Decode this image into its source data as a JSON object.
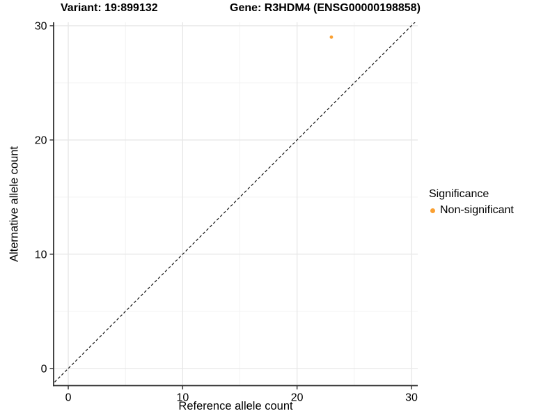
{
  "titles": {
    "left": "Variant: 19:899132",
    "right": "Gene: R3HDM4 (ENSG00000198858)"
  },
  "axes": {
    "x": {
      "label": "Reference allele count"
    },
    "y": {
      "label": "Alternative allele count"
    }
  },
  "legend": {
    "title": "Significance",
    "items": [
      {
        "label": "Non-significant",
        "color": "#FAA032",
        "shape": "circle"
      }
    ]
  },
  "chart_data": {
    "type": "scatter",
    "title": "Variant: 19:899132 | Gene: R3HDM4 (ENSG00000198858)",
    "xlabel": "Reference allele count",
    "ylabel": "Alternative allele count",
    "points": [
      {
        "x": 23,
        "y": 29,
        "series": "Non-significant",
        "color": "#FAA032"
      }
    ],
    "reference_line": {
      "kind": "identity",
      "slope": 1,
      "intercept": 0,
      "style": "dashed",
      "color": "#111111"
    },
    "x_ticks": [
      0,
      10,
      20,
      30
    ],
    "y_ticks": [
      0,
      10,
      20,
      30
    ],
    "minor_gridlines": [
      5,
      15,
      25
    ],
    "xlim": [
      -1.28,
      30.55
    ],
    "ylim": [
      -1.5,
      30.3
    ],
    "grid": "major+minor",
    "legend_position": "right",
    "colors": {
      "grid_major": "#E7E7E7",
      "grid_minor": "#F1F1F1",
      "axis_line": "#2F2F2F",
      "tick": "#2F2F2F",
      "text": "#000000"
    }
  }
}
